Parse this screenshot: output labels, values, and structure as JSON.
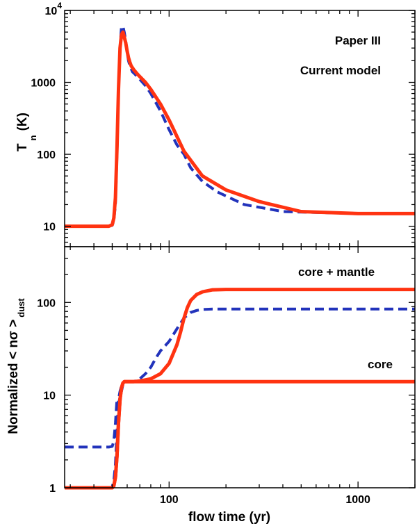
{
  "colors": {
    "paper_iii": "#2233bb",
    "current_model": "#ff3311",
    "axis": "#000000",
    "background": "#ffffff"
  },
  "chart_data": [
    {
      "type": "line",
      "panel": "top",
      "ylabel": "T",
      "ylabel_sub": "n",
      "ylabel_unit": "(K)",
      "yscale": "log",
      "ylim": [
        5.2,
        10000
      ],
      "xscale": "log",
      "xlim": [
        28,
        2000
      ],
      "y_ticks": [
        {
          "value": 10,
          "base": "10",
          "exp": ""
        },
        {
          "value": 100,
          "base": "100",
          "exp": ""
        },
        {
          "value": 1000,
          "base": "1000",
          "exp": ""
        },
        {
          "value": 10000,
          "base": "10",
          "exp": "4"
        }
      ],
      "legend": {
        "position": "top-right",
        "entries": [
          "Paper III",
          "Current model"
        ]
      },
      "series": [
        {
          "name": "Paper III",
          "style": "dashed",
          "color_key": "paper_iii",
          "x": [
            28,
            48,
            50,
            51,
            52,
            53,
            54,
            55,
            56,
            57,
            58,
            59,
            60,
            61,
            62,
            64,
            66,
            70,
            75,
            80,
            90,
            100,
            110,
            120,
            130,
            150,
            180,
            250,
            400,
            1000,
            2000
          ],
          "y": [
            10,
            10,
            10.3,
            12,
            20,
            100,
            700,
            3000,
            6000,
            6000,
            4900,
            3700,
            2600,
            2000,
            1700,
            1400,
            1300,
            1100,
            900,
            700,
            400,
            220,
            135,
            100,
            65,
            42,
            30,
            20,
            16,
            15,
            15
          ]
        },
        {
          "name": "Current model",
          "style": "solid",
          "color_key": "current_model",
          "x": [
            28,
            48,
            50,
            51,
            52,
            53,
            54,
            55,
            56,
            57,
            58,
            59,
            60,
            61,
            62,
            63,
            65,
            68,
            70,
            75,
            80,
            90,
            100,
            120,
            150,
            200,
            300,
            500,
            1000,
            2000
          ],
          "y": [
            10,
            10,
            10.5,
            13,
            25,
            120,
            800,
            3000,
            4600,
            5000,
            4200,
            3500,
            2700,
            2200,
            1900,
            1700,
            1500,
            1300,
            1200,
            1000,
            800,
            500,
            300,
            110,
            50,
            32,
            22,
            16,
            15,
            15
          ]
        }
      ]
    },
    {
      "type": "line",
      "panel": "bottom",
      "ylabel": "Normalized < nσ >",
      "ylabel_sub": "dust",
      "yscale": "log",
      "ylim": [
        1,
        400
      ],
      "xscale": "log",
      "xlim": [
        28,
        2000
      ],
      "xlabel": "flow time (yr)",
      "x_ticks": [
        {
          "value": 100,
          "label": "100"
        },
        {
          "value": 1000,
          "label": "1000"
        }
      ],
      "y_ticks": [
        {
          "value": 1,
          "label": "1"
        },
        {
          "value": 10,
          "label": "10"
        },
        {
          "value": 100,
          "label": "100"
        }
      ],
      "annotations": [
        "core + mantle",
        "core"
      ],
      "series": [
        {
          "name": "Paper III (core + mantle)",
          "style": "dashed",
          "color_key": "paper_iii",
          "x": [
            28,
            48,
            50,
            51,
            52,
            53,
            54,
            55,
            56,
            57,
            58,
            60,
            65,
            70,
            75,
            80,
            85,
            90,
            100,
            110,
            120,
            130,
            140,
            150,
            170,
            200,
            300,
            500,
            1000,
            2000
          ],
          "y": [
            2.75,
            2.75,
            2.8,
            3.2,
            5,
            9,
            8,
            9.5,
            11,
            13,
            13.5,
            14,
            14,
            15,
            17,
            20,
            25,
            30,
            38,
            52,
            68,
            78,
            82,
            84,
            85,
            85,
            85,
            85,
            85,
            85
          ]
        },
        {
          "name": "Current model (core + mantle)",
          "style": "solid",
          "color_key": "current_model",
          "x": [
            28,
            50,
            51,
            52,
            53,
            54,
            55,
            56,
            57,
            58,
            60,
            65,
            70,
            80,
            90,
            100,
            110,
            115,
            120,
            125,
            130,
            140,
            150,
            170,
            200,
            300,
            500,
            1000,
            2000
          ],
          "y": [
            1,
            1,
            1.05,
            1.3,
            2.2,
            5,
            9,
            12,
            13.5,
            14,
            14,
            14,
            14.2,
            15,
            17,
            22,
            35,
            48,
            68,
            88,
            105,
            122,
            130,
            137,
            138,
            138,
            138,
            138,
            138
          ]
        },
        {
          "name": "Paper III (core)",
          "style": "dashed",
          "color_key": "paper_iii",
          "x": [
            28,
            48,
            50,
            51,
            52,
            53,
            54,
            55,
            56,
            57,
            58,
            60,
            65,
            100,
            1000,
            2000
          ],
          "y": [
            1,
            1,
            1.02,
            1.2,
            1.8,
            4,
            9,
            11,
            12.5,
            13.5,
            14,
            14,
            14,
            14,
            14,
            14
          ]
        },
        {
          "name": "Current model (core)",
          "style": "solid",
          "color_key": "current_model",
          "x": [
            28,
            50,
            51,
            52,
            53,
            54,
            55,
            56,
            57,
            58,
            60,
            65,
            100,
            1000,
            2000
          ],
          "y": [
            1,
            1,
            1.05,
            1.3,
            2.2,
            5,
            9,
            12,
            13.5,
            14,
            14,
            14,
            14,
            14,
            14
          ]
        }
      ]
    }
  ]
}
